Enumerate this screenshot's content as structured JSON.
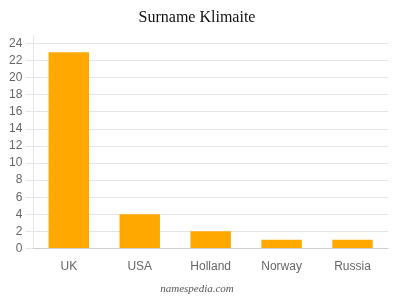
{
  "chart_data": {
    "type": "bar",
    "title": "Surname Klimaite",
    "categories": [
      "UK",
      "USA",
      "Holland",
      "Norway",
      "Russia"
    ],
    "values": [
      23,
      4,
      2,
      1,
      1
    ],
    "color": "#FFA900",
    "ylim": [
      0,
      25
    ],
    "yticks": [
      0,
      2,
      4,
      6,
      8,
      10,
      12,
      14,
      16,
      18,
      20,
      22,
      24
    ],
    "grid": true,
    "annotations": [
      "namespedia.com"
    ]
  }
}
